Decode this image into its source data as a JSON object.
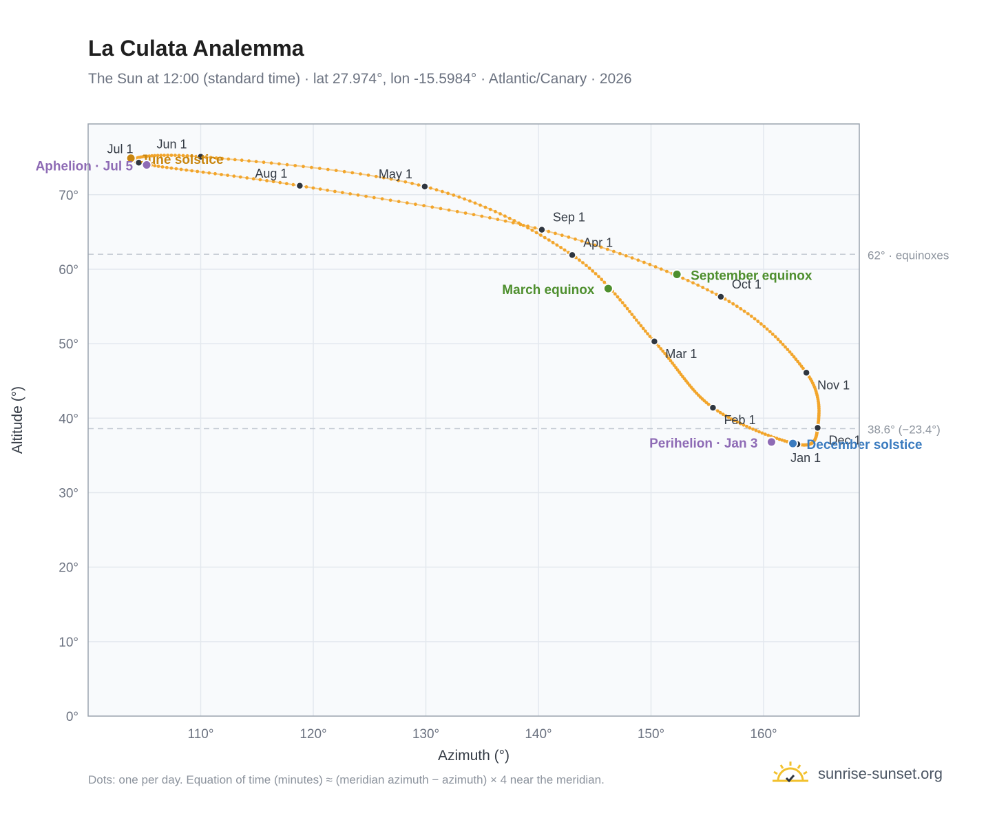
{
  "header": {
    "title": "La Culata Analemma",
    "subtitle": "The Sun at 12:00 (standard time) · lat 27.974°, lon -15.5984° · Atlantic/Canary · 2026"
  },
  "footer": {
    "note": "Dots: one per day. Equation of time (minutes) ≈ (meridian azimuth − azimuth) × 4 near the meridian.",
    "brand": "sunrise-sunset.org"
  },
  "colors": {
    "curve": "#f2a52b",
    "month_marker": "#2f3640",
    "equinox": "#4e8f2e",
    "june_solstice": "#c9860f",
    "december_solstice": "#3a7bbf",
    "apsis": "#8e6bb5",
    "reference_line": "#c3c9d2",
    "plot_bg": "#f8fafc",
    "grid": "#e3e8ee",
    "axis_text": "#6b7280"
  },
  "chart_data": {
    "type": "scatter",
    "xlabel": "Azimuth (°)",
    "ylabel": "Altitude (°)",
    "xlim": [
      100,
      168.5
    ],
    "ylim": [
      0,
      79.5
    ],
    "x_ticks": [
      110,
      120,
      130,
      140,
      150,
      160
    ],
    "x_tick_labels": [
      "110°",
      "120°",
      "130°",
      "140°",
      "150°",
      "160°"
    ],
    "y_ticks": [
      0,
      10,
      20,
      30,
      40,
      50,
      60,
      70
    ],
    "y_tick_labels": [
      "0°",
      "10°",
      "20°",
      "30°",
      "40°",
      "50°",
      "60°",
      "70°"
    ],
    "grid": true,
    "series_note": "daily positions, one dot per day",
    "month_markers": [
      {
        "label": "Jan 1",
        "x": 163.0,
        "y": 36.5
      },
      {
        "label": "Feb 1",
        "x": 155.5,
        "y": 41.4
      },
      {
        "label": "Mar 1",
        "x": 150.3,
        "y": 50.3
      },
      {
        "label": "Apr 1",
        "x": 143.0,
        "y": 61.9
      },
      {
        "label": "May 1",
        "x": 129.9,
        "y": 71.1
      },
      {
        "label": "Jun 1",
        "x": 110.0,
        "y": 75.1
      },
      {
        "label": "Jul 1",
        "x": 104.5,
        "y": 74.3
      },
      {
        "label": "Aug 1",
        "x": 118.8,
        "y": 71.2
      },
      {
        "label": "Sep 1",
        "x": 140.3,
        "y": 65.3
      },
      {
        "label": "Oct 1",
        "x": 156.2,
        "y": 56.3
      },
      {
        "label": "Nov 1",
        "x": 163.8,
        "y": 46.1
      },
      {
        "label": "Dec 1",
        "x": 164.8,
        "y": 38.7
      }
    ],
    "events": [
      {
        "label": "March equinox",
        "x": 146.2,
        "y": 57.4,
        "kind": "equinox"
      },
      {
        "label": "June solstice",
        "x": 103.8,
        "y": 74.9,
        "kind": "june_solstice"
      },
      {
        "label": "September equinox",
        "x": 152.3,
        "y": 59.3,
        "kind": "equinox"
      },
      {
        "label": "December solstice",
        "x": 162.6,
        "y": 36.6,
        "kind": "december_solstice"
      },
      {
        "label": "Perihelion · Jan 3",
        "x": 160.7,
        "y": 36.8,
        "kind": "apsis"
      },
      {
        "label": "Aphelion · Jul 5",
        "x": 105.2,
        "y": 74.0,
        "kind": "apsis"
      }
    ],
    "reference_lines": [
      {
        "y": 62.0,
        "label": "62° · equinoxes"
      },
      {
        "y": 38.6,
        "label": "38.6° (−23.4°)"
      }
    ]
  }
}
